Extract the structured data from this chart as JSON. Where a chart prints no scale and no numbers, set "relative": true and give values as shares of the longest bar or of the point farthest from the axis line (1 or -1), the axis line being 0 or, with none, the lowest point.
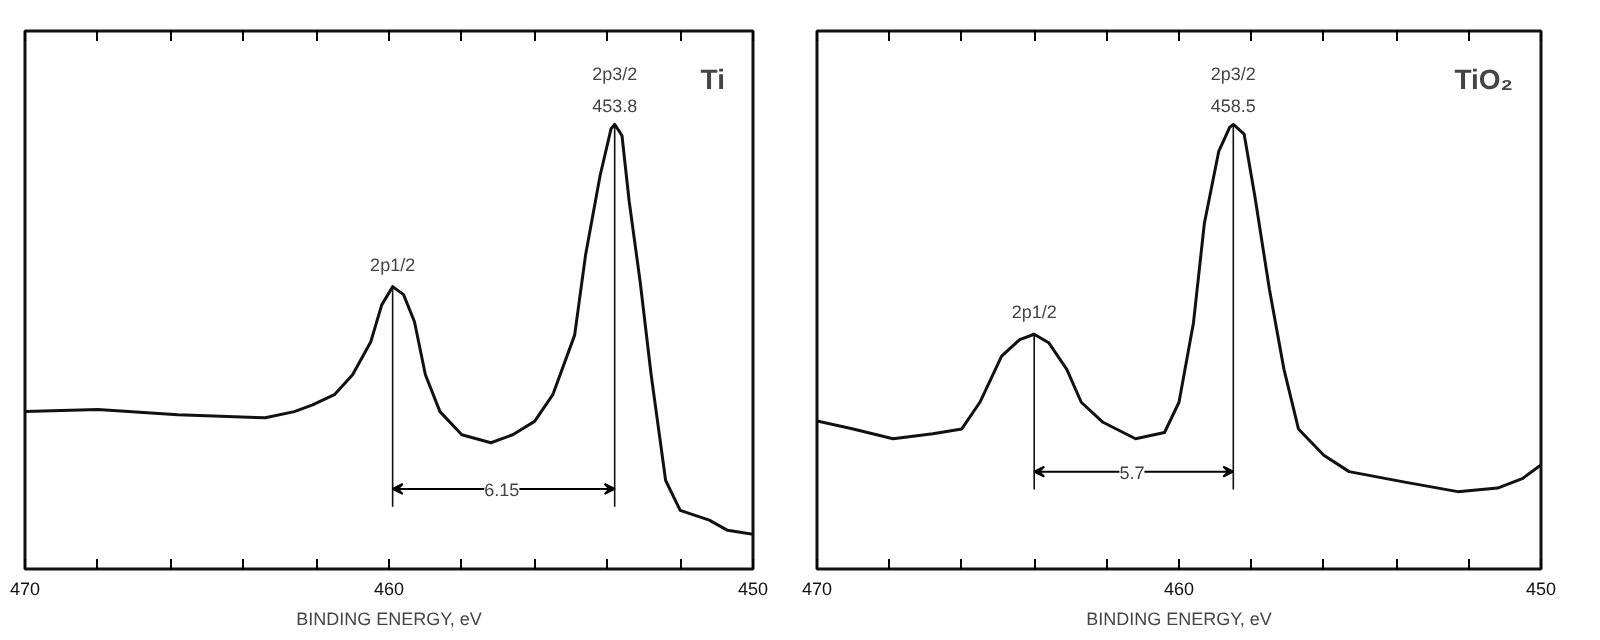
{
  "chart_data": [
    {
      "type": "line",
      "title": "Ti",
      "xlabel": "BINDING ENERGY, eV",
      "relative": true,
      "tick_labels": "x",
      "xlim": [
        470,
        450
      ],
      "xticks": [
        470,
        {
          "value": 468,
          "label": null
        },
        {
          "value": 466,
          "label": null
        },
        {
          "value": 464,
          "label": null
        },
        {
          "value": 462,
          "label": null
        },
        460,
        {
          "value": 458,
          "label": null
        },
        {
          "value": 456,
          "label": null
        },
        {
          "value": 454,
          "label": null
        },
        {
          "value": 452,
          "label": null
        },
        450
      ],
      "series": [
        {
          "color": "#111111",
          "x": [
            470.0,
            468.0,
            465.8,
            463.4,
            462.6,
            462.1,
            461.5,
            461.0,
            460.5,
            460.2,
            459.9,
            459.6,
            459.3,
            459.0,
            458.6,
            458.0,
            457.2,
            456.6,
            456.0,
            455.5,
            454.9,
            454.6,
            454.2,
            453.9,
            453.8,
            453.6,
            453.4,
            453.1,
            452.8,
            452.4,
            452.0,
            451.2,
            450.7,
            450.0
          ],
          "values": [
            0.354,
            0.359,
            0.347,
            0.34,
            0.354,
            0.369,
            0.392,
            0.437,
            0.511,
            0.594,
            0.635,
            0.617,
            0.556,
            0.437,
            0.354,
            0.302,
            0.284,
            0.302,
            0.332,
            0.392,
            0.526,
            0.706,
            0.885,
            0.99,
            1.0,
            0.975,
            0.826,
            0.646,
            0.438,
            0.199,
            0.132,
            0.11,
            0.087,
            0.078
          ]
        }
      ],
      "annotations": [
        {
          "text": "2p1/2",
          "x": 459.9,
          "y": 0.635
        },
        {
          "text": "2p3/2",
          "x": 453.8,
          "y": 1.0
        },
        {
          "text": "453.8",
          "x": 453.8,
          "y": 1.0
        },
        {
          "text": "6.15",
          "x": 456.9,
          "y": 0.18
        }
      ],
      "ref_lines": [
        {
          "axis": "x",
          "value": 459.9
        },
        {
          "axis": "x",
          "value": 453.8
        }
      ]
    },
    {
      "type": "line",
      "title": "TiO₂",
      "xlabel": "BINDING ENERGY, eV",
      "relative": true,
      "tick_labels": "x",
      "xlim": [
        470,
        450
      ],
      "xticks": [
        470,
        {
          "value": 468,
          "label": null
        },
        {
          "value": 466,
          "label": null
        },
        {
          "value": 464,
          "label": null
        },
        {
          "value": 462,
          "label": null
        },
        460,
        {
          "value": 458,
          "label": null
        },
        {
          "value": 456,
          "label": null
        },
        {
          "value": 454,
          "label": null
        },
        {
          "value": 452,
          "label": null
        },
        450
      ],
      "series": [
        {
          "color": "#111111",
          "x": [
            470.0,
            469.0,
            467.9,
            466.8,
            466.0,
            465.5,
            464.9,
            464.4,
            464.0,
            463.6,
            463.1,
            462.7,
            462.1,
            461.2,
            460.4,
            460.0,
            459.6,
            459.3,
            458.9,
            458.6,
            458.5,
            458.2,
            457.9,
            457.5,
            457.1,
            456.7,
            456.0,
            455.3,
            453.8,
            452.3,
            451.2,
            450.5,
            450.0
          ],
          "values": [
            0.333,
            0.315,
            0.293,
            0.304,
            0.315,
            0.375,
            0.479,
            0.516,
            0.528,
            0.509,
            0.449,
            0.375,
            0.33,
            0.293,
            0.307,
            0.375,
            0.554,
            0.777,
            0.94,
            0.993,
            1.0,
            0.978,
            0.836,
            0.628,
            0.449,
            0.315,
            0.256,
            0.219,
            0.196,
            0.174,
            0.182,
            0.204,
            0.234
          ]
        }
      ],
      "annotations": [
        {
          "text": "2p1/2",
          "x": 464.0,
          "y": 0.528
        },
        {
          "text": "2p3/2",
          "x": 458.5,
          "y": 1.0
        },
        {
          "text": "458.5",
          "x": 458.5,
          "y": 1.0
        },
        {
          "text": "5.7",
          "x": 461.3,
          "y": 0.219
        }
      ],
      "ref_lines": [
        {
          "axis": "x",
          "value": 464.0
        },
        {
          "axis": "x",
          "value": 458.5
        }
      ]
    }
  ]
}
